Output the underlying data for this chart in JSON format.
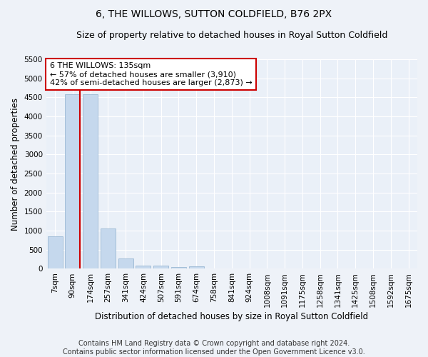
{
  "title": "6, THE WILLOWS, SUTTON COLDFIELD, B76 2PX",
  "subtitle": "Size of property relative to detached houses in Royal Sutton Coldfield",
  "xlabel": "Distribution of detached houses by size in Royal Sutton Coldfield",
  "ylabel": "Number of detached properties",
  "bin_labels": [
    "7sqm",
    "90sqm",
    "174sqm",
    "257sqm",
    "341sqm",
    "424sqm",
    "507sqm",
    "591sqm",
    "674sqm",
    "758sqm",
    "841sqm",
    "924sqm",
    "1008sqm",
    "1091sqm",
    "1175sqm",
    "1258sqm",
    "1341sqm",
    "1425sqm",
    "1508sqm",
    "1592sqm",
    "1675sqm"
  ],
  "bar_values": [
    850,
    4580,
    4580,
    1050,
    270,
    90,
    80,
    50,
    60,
    0,
    0,
    0,
    0,
    0,
    0,
    0,
    0,
    0,
    0,
    0,
    0
  ],
  "bar_color": "#c5d8ed",
  "bar_edge_color": "#9bb8d4",
  "vline_color": "#cc0000",
  "vline_pos": 1.42,
  "ylim": [
    0,
    5500
  ],
  "yticks": [
    0,
    500,
    1000,
    1500,
    2000,
    2500,
    3000,
    3500,
    4000,
    4500,
    5000,
    5500
  ],
  "annotation_text": "6 THE WILLOWS: 135sqm\n← 57% of detached houses are smaller (3,910)\n42% of semi-detached houses are larger (2,873) →",
  "annotation_box_facecolor": "#ffffff",
  "annotation_box_edgecolor": "#cc0000",
  "footer_line1": "Contains HM Land Registry data © Crown copyright and database right 2024.",
  "footer_line2": "Contains public sector information licensed under the Open Government Licence v3.0.",
  "bg_color": "#eef2f8",
  "plot_bg_color": "#eaf0f8",
  "grid_color": "#ffffff",
  "title_fontsize": 10,
  "subtitle_fontsize": 9,
  "axis_label_fontsize": 8.5,
  "tick_fontsize": 7.5,
  "annotation_fontsize": 8,
  "footer_fontsize": 7
}
